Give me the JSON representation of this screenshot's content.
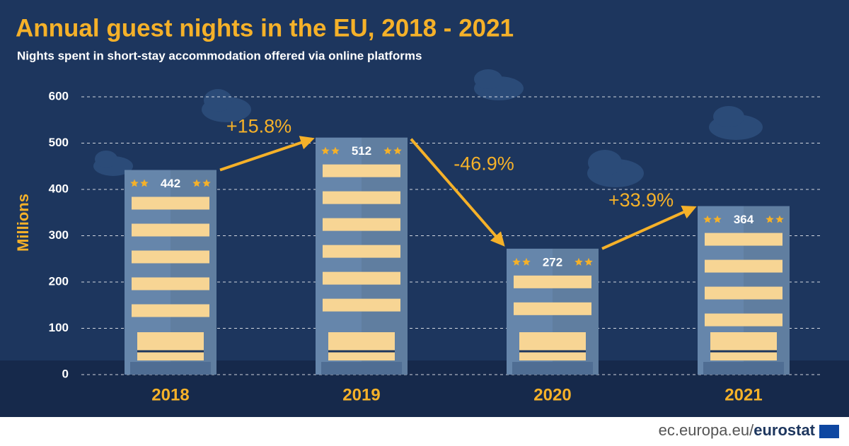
{
  "chart_data": {
    "type": "bar",
    "title": "Annual guest nights in the EU, 2018 - 2021",
    "subtitle": "Nights spent in short-stay accommodation offered via online platforms",
    "y_label": "Millions",
    "categories": [
      "2018",
      "2019",
      "2020",
      "2021"
    ],
    "values": [
      442,
      512,
      272,
      364
    ],
    "changes": [
      "+15.8%",
      "-46.9%",
      "+33.9%"
    ],
    "color": "#6686ab",
    "accent": "#f5b129",
    "ylim": [
      0,
      600
    ],
    "yticks": [
      0,
      100,
      200,
      300,
      400,
      500,
      600
    ],
    "grid": true,
    "source": "ec.europa.eu/",
    "brand": "eurostat"
  }
}
